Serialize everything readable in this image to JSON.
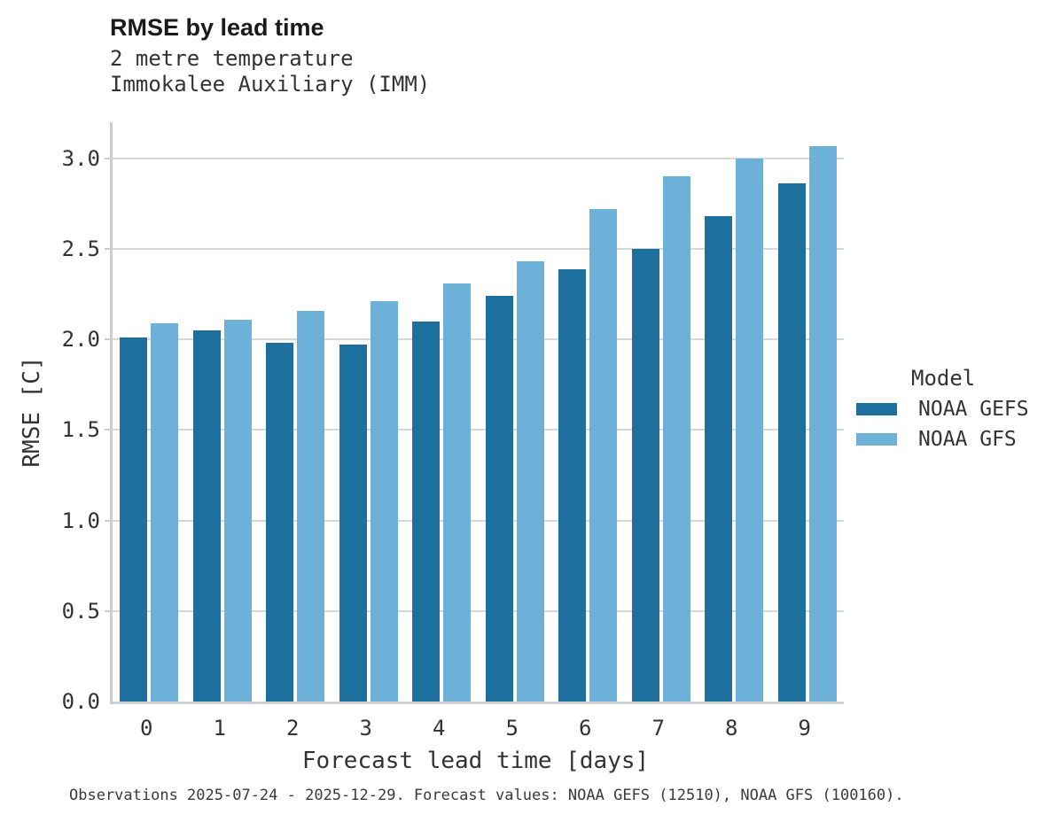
{
  "title": "RMSE by lead time",
  "subtitle_lines": [
    "2 metre temperature",
    "Immokalee Auxiliary (IMM)"
  ],
  "caption": "Observations 2025-07-24 - 2025-12-29. Forecast values: NOAA GEFS (12510), NOAA GFS (100160).",
  "legend": {
    "title": "Model",
    "entries": [
      {
        "label": "NOAA GEFS",
        "color": "#1d6f9e"
      },
      {
        "label": "NOAA GFS",
        "color": "#6db1d9"
      }
    ]
  },
  "colors": {
    "gefs_dark_blue": "#1d6f9e",
    "gfs_light_blue": "#6db1d9",
    "gridline_gray": "#d8d8d8",
    "axis_gray": "#cdcdcd",
    "title_text": "#1a1a1a",
    "body_text": "#333333"
  },
  "chart_data": {
    "type": "bar",
    "title": "RMSE by lead time",
    "subtitle": "2 metre temperature — Immokalee Auxiliary (IMM)",
    "categories": [
      "0",
      "1",
      "2",
      "3",
      "4",
      "5",
      "6",
      "7",
      "8",
      "9"
    ],
    "series": [
      {
        "name": "NOAA GEFS",
        "color": "#1d6f9e",
        "values": [
          2.01,
          2.05,
          1.98,
          1.97,
          2.1,
          2.24,
          2.39,
          2.5,
          2.68,
          2.86
        ]
      },
      {
        "name": "NOAA GFS",
        "color": "#6db1d9",
        "values": [
          2.09,
          2.11,
          2.16,
          2.21,
          2.31,
          2.43,
          2.72,
          2.9,
          3.0,
          3.07
        ]
      }
    ],
    "xlabel": "Forecast lead time [days]",
    "ylabel": "RMSE [C]",
    "ylim": [
      0,
      3.2
    ],
    "yticks": [
      0.0,
      0.5,
      1.0,
      1.5,
      2.0,
      2.5,
      3.0
    ],
    "ytick_format": "one_decimal",
    "grid": true,
    "legend_position": "right"
  }
}
